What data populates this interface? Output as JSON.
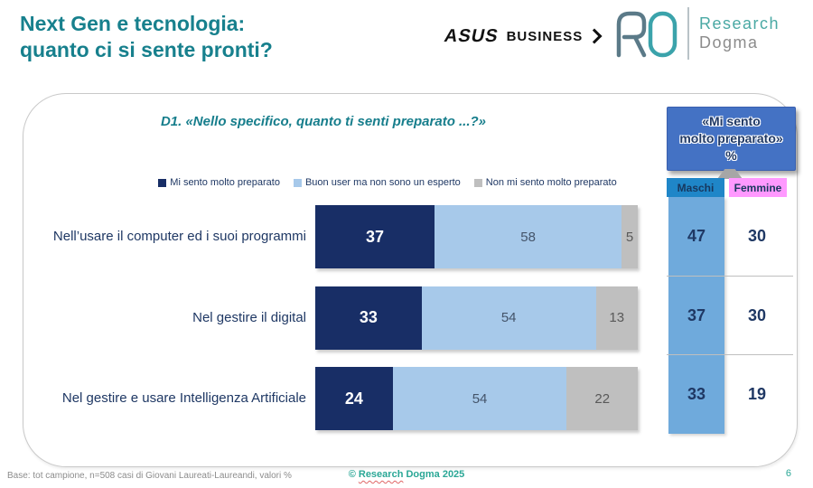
{
  "slide": {
    "title_line1": "Next Gen e tecnologia:",
    "title_line2": "quanto ci si sente pronti?",
    "page_number": "6"
  },
  "logos": {
    "asus": {
      "brand": "ASUS",
      "suffix": "BUSINESS"
    },
    "research_dogma": {
      "name_line1": "Research",
      "name_line2": "Dogma"
    }
  },
  "chart_data": {
    "type": "bar",
    "orientation": "horizontal_stacked",
    "question": "D1. «Nello specifico, quanto ti senti preparato ...?»",
    "categories": [
      "Nell’usare il computer ed i suoi programmi",
      "Nel gestire il digital",
      "Nel gestire e usare Intelligenza Artificiale"
    ],
    "series": [
      {
        "name": "Mi sento molto preparato",
        "color": "#182E66",
        "label_color": "#FFFFFF",
        "label_bold": true,
        "values": [
          37,
          33,
          24
        ]
      },
      {
        "name": "Buon user ma non sono un esperto",
        "color": "#A7C9EA",
        "label_color": "#44546A",
        "label_bold": false,
        "values": [
          58,
          54,
          54
        ]
      },
      {
        "name": "Non mi sento molto preparato",
        "color": "#BFBFBF",
        "label_color": "#595959",
        "label_bold": false,
        "values": [
          5,
          13,
          22
        ]
      }
    ],
    "xlim": [
      0,
      100
    ],
    "values_unit": "%",
    "legend_position": "top",
    "grid": false
  },
  "side_table": {
    "header_line1": "«Mi sento",
    "header_line2": "molto preparato»",
    "header_line3": "%",
    "header_bg": "#4472C4",
    "columns": [
      {
        "label": "Maschi",
        "bg": "#1F86C8"
      },
      {
        "label": "Femmine",
        "bg": "#FF99FF"
      }
    ],
    "column_fill": "#6FAADC",
    "rows": [
      {
        "maschi": "47",
        "femmine": "30"
      },
      {
        "maschi": "37",
        "femmine": "30"
      },
      {
        "maschi": "33",
        "femmine": "19"
      }
    ]
  },
  "footer": {
    "base_note": "Base: tot campione, n=508 casi di Giovani Laureati-Laureandi, valori %",
    "copyright_symbol": "©",
    "copyright_word1": "Research",
    "copyright_rest": "Dogma 2025"
  },
  "colors": {
    "title_teal": "#17808D",
    "question_teal": "#177E8C",
    "navy_text": "#1F3864",
    "copyright_teal": "#2AA796"
  }
}
